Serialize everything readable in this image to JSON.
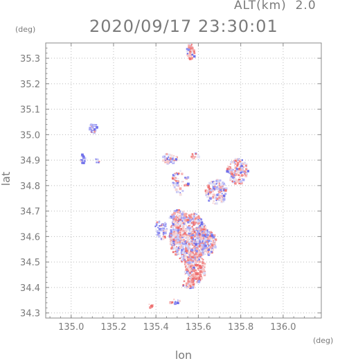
{
  "header": {
    "alt_label": "ALT(km)  2.0",
    "timestamp": "2020/09/17 23:30:01"
  },
  "chart_data": {
    "type": "scatter",
    "xlabel": "lon",
    "ylabel": "lat",
    "x_unit": "(deg)",
    "y_unit": "(deg)",
    "xlim": [
      134.88,
      136.18
    ],
    "ylim": [
      34.28,
      35.36
    ],
    "x_ticks": [
      135.0,
      135.2,
      135.4,
      135.6,
      135.8,
      136.0
    ],
    "x_tick_labels": [
      "135.0",
      "135.2",
      "135.4",
      "135.6",
      "135.8",
      "136.0"
    ],
    "y_ticks": [
      34.3,
      34.4,
      34.5,
      34.6,
      34.7,
      34.8,
      34.9,
      35.0,
      35.1,
      35.2,
      35.3
    ],
    "y_tick_labels": [
      "34.3",
      "34.4",
      "34.5",
      "34.6",
      "34.7",
      "34.8",
      "34.9",
      "35.0",
      "35.1",
      "35.2",
      "35.3"
    ],
    "colors": {
      "positive": "#f08a8a",
      "negative": "#8a8af0",
      "neutral": "#c8c8ee"
    },
    "clusters": [
      {
        "lon": 135.1,
        "lat": 35.03,
        "rlon": 0.02,
        "rlat": 0.02,
        "polarity": -1,
        "density": 0.9
      },
      {
        "lon": 135.05,
        "lat": 34.91,
        "rlon": 0.01,
        "rlat": 0.02,
        "polarity": -1,
        "density": 0.7
      },
      {
        "lon": 135.12,
        "lat": 34.9,
        "rlon": 0.01,
        "rlat": 0.01,
        "polarity": -1,
        "density": 0.7
      },
      {
        "lon": 135.56,
        "lat": 35.33,
        "rlon": 0.02,
        "rlat": 0.03,
        "polarity": 1,
        "density": 0.8
      },
      {
        "lon": 135.46,
        "lat": 34.91,
        "rlon": 0.04,
        "rlat": 0.02,
        "polarity": 0,
        "density": 0.6
      },
      {
        "lon": 135.58,
        "lat": 34.92,
        "rlon": 0.02,
        "rlat": 0.01,
        "polarity": 1,
        "density": 0.6
      },
      {
        "lon": 135.51,
        "lat": 34.82,
        "rlon": 0.04,
        "rlat": 0.05,
        "polarity": 0,
        "density": 0.25
      },
      {
        "lon": 135.78,
        "lat": 34.86,
        "rlon": 0.05,
        "rlat": 0.05,
        "polarity": 0,
        "density": 0.6
      },
      {
        "lon": 135.68,
        "lat": 34.78,
        "rlon": 0.05,
        "rlat": 0.05,
        "polarity": 0,
        "density": 0.55
      },
      {
        "lon": 135.55,
        "lat": 34.6,
        "rlon": 0.09,
        "rlat": 0.1,
        "polarity": 0,
        "density": 0.85
      },
      {
        "lon": 135.58,
        "lat": 34.48,
        "rlon": 0.05,
        "rlat": 0.06,
        "polarity": 1,
        "density": 0.8
      },
      {
        "lon": 135.5,
        "lat": 34.68,
        "rlon": 0.04,
        "rlat": 0.03,
        "polarity": 0,
        "density": 0.6
      },
      {
        "lon": 135.42,
        "lat": 34.63,
        "rlon": 0.03,
        "rlat": 0.04,
        "polarity": -1,
        "density": 0.45
      },
      {
        "lon": 135.55,
        "lat": 34.42,
        "rlon": 0.03,
        "rlat": 0.02,
        "polarity": 0,
        "density": 0.5
      },
      {
        "lon": 135.37,
        "lat": 34.33,
        "rlon": 0.01,
        "rlat": 0.01,
        "polarity": 1,
        "density": 0.8
      },
      {
        "lon": 135.48,
        "lat": 34.35,
        "rlon": 0.03,
        "rlat": 0.01,
        "polarity": 0,
        "density": 0.35
      },
      {
        "lon": 135.63,
        "lat": 34.58,
        "rlon": 0.05,
        "rlat": 0.05,
        "polarity": 0,
        "density": 0.6
      }
    ]
  }
}
